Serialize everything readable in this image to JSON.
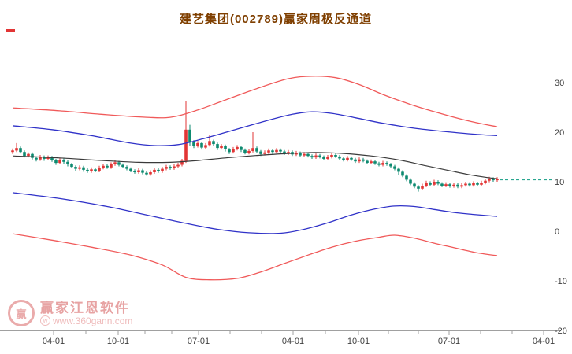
{
  "security": {
    "name": "建艺集团",
    "code": "002789",
    "indicator": "赢家周极反通道"
  },
  "watermark": {
    "brand": "赢家江恩软件",
    "url": "www.360gann.com",
    "url_icon": "w",
    "logo_char": "赢",
    "color": "#e8a3a3"
  },
  "colors": {
    "title": "#7f3f00",
    "up": "#e23535",
    "down": "#0e8a70",
    "band_red": "#f05a5a",
    "band_blue": "#3032c8",
    "band_center": "#3a3a3a",
    "price_line": "#2aa690",
    "axis": "#a0a0a0",
    "tick_label": "#404040",
    "marker": "#e23535"
  },
  "chart_data": {
    "type": "candlestick",
    "title": "建艺集团(002789)赢家周极反通道",
    "ylim": [
      -20,
      30
    ],
    "grid": false,
    "y_ticks": [
      30,
      20,
      10,
      0,
      -10,
      -20
    ],
    "x_ticks": [
      {
        "label": "04-01",
        "x": 68
      },
      {
        "label": "10-01",
        "x": 150
      },
      {
        "label": "07-01",
        "x": 252
      },
      {
        "label": "04-01",
        "x": 372
      },
      {
        "label": "10-01",
        "x": 455
      },
      {
        "label": "07-01",
        "x": 570
      },
      {
        "label": "04-01",
        "x": 690
      }
    ],
    "minor_x": [
      109,
      184,
      218,
      292,
      332,
      413,
      493,
      531,
      610,
      650
    ],
    "price_line": 10.4,
    "candles": [
      [
        16.0,
        16.7,
        15.6,
        16.3
      ],
      [
        16.3,
        17.8,
        16.0,
        16.8
      ],
      [
        16.8,
        17.1,
        15.7,
        16.0
      ],
      [
        16.0,
        16.3,
        14.9,
        15.2
      ],
      [
        15.2,
        15.9,
        14.9,
        15.6
      ],
      [
        15.6,
        15.9,
        14.5,
        14.8
      ],
      [
        14.8,
        15.1,
        14.1,
        14.5
      ],
      [
        14.5,
        15.4,
        14.2,
        15.0
      ],
      [
        15.0,
        15.3,
        14.2,
        14.6
      ],
      [
        14.6,
        15.3,
        14.3,
        14.9
      ],
      [
        14.9,
        15.2,
        14.0,
        14.3
      ],
      [
        14.3,
        14.6,
        13.4,
        13.8
      ],
      [
        13.8,
        14.8,
        13.5,
        14.4
      ],
      [
        14.4,
        14.7,
        13.6,
        14.0
      ],
      [
        14.0,
        14.3,
        13.1,
        13.5
      ],
      [
        13.5,
        13.8,
        12.7,
        13.0
      ],
      [
        13.0,
        13.3,
        12.2,
        12.6
      ],
      [
        12.6,
        13.3,
        12.3,
        12.9
      ],
      [
        12.9,
        13.2,
        12.0,
        12.4
      ],
      [
        12.4,
        12.7,
        11.8,
        12.1
      ],
      [
        12.1,
        12.9,
        11.8,
        12.5
      ],
      [
        12.5,
        12.8,
        11.9,
        12.2
      ],
      [
        12.2,
        13.2,
        11.9,
        12.8
      ],
      [
        12.8,
        13.6,
        12.5,
        13.2
      ],
      [
        13.2,
        13.5,
        12.6,
        12.9
      ],
      [
        12.9,
        13.9,
        12.6,
        13.5
      ],
      [
        13.5,
        14.3,
        13.2,
        13.9
      ],
      [
        13.9,
        14.2,
        13.1,
        13.4
      ],
      [
        13.4,
        13.7,
        12.7,
        13.0
      ],
      [
        13.0,
        13.3,
        12.3,
        12.6
      ],
      [
        12.6,
        12.9,
        11.9,
        12.2
      ],
      [
        12.2,
        12.5,
        11.6,
        11.9
      ],
      [
        11.9,
        12.7,
        11.6,
        12.3
      ],
      [
        12.3,
        12.6,
        11.5,
        11.8
      ],
      [
        11.8,
        12.1,
        11.2,
        11.5
      ],
      [
        11.5,
        12.3,
        11.2,
        11.9
      ],
      [
        11.9,
        12.8,
        11.6,
        12.4
      ],
      [
        12.4,
        12.7,
        11.8,
        12.1
      ],
      [
        12.1,
        13.0,
        11.8,
        12.6
      ],
      [
        12.6,
        13.4,
        12.3,
        13.0
      ],
      [
        13.0,
        13.3,
        12.4,
        12.7
      ],
      [
        12.7,
        13.5,
        12.4,
        13.1
      ],
      [
        13.1,
        13.8,
        12.8,
        13.4
      ],
      [
        13.4,
        14.6,
        13.1,
        14.2
      ],
      [
        14.2,
        26.2,
        13.8,
        20.5
      ],
      [
        20.5,
        21.5,
        17.3,
        18.0
      ],
      [
        18.0,
        18.4,
        16.8,
        17.2
      ],
      [
        17.2,
        18.2,
        16.9,
        17.8
      ],
      [
        17.8,
        18.1,
        16.5,
        16.9
      ],
      [
        16.9,
        17.8,
        16.6,
        17.4
      ],
      [
        17.4,
        19.5,
        17.1,
        18.2
      ],
      [
        18.2,
        18.5,
        17.2,
        17.6
      ],
      [
        17.6,
        17.9,
        16.4,
        16.8
      ],
      [
        16.8,
        17.6,
        16.5,
        17.2
      ],
      [
        17.2,
        17.5,
        16.1,
        16.5
      ],
      [
        16.5,
        16.8,
        15.6,
        16.0
      ],
      [
        16.0,
        17.0,
        15.7,
        16.6
      ],
      [
        16.6,
        17.4,
        16.3,
        17.0
      ],
      [
        17.0,
        17.3,
        16.0,
        16.4
      ],
      [
        16.4,
        16.7,
        15.5,
        15.8
      ],
      [
        15.8,
        16.6,
        15.5,
        16.2
      ],
      [
        16.2,
        20.0,
        15.9,
        16.8
      ],
      [
        16.8,
        17.1,
        15.8,
        16.1
      ],
      [
        16.1,
        16.4,
        15.2,
        15.6
      ],
      [
        15.6,
        16.3,
        15.3,
        15.9
      ],
      [
        15.9,
        16.7,
        15.6,
        16.3
      ],
      [
        16.3,
        16.6,
        15.6,
        16.0
      ],
      [
        16.0,
        16.8,
        15.7,
        16.4
      ],
      [
        16.4,
        16.7,
        15.8,
        16.1
      ],
      [
        16.1,
        16.4,
        15.4,
        15.7
      ],
      [
        15.7,
        16.4,
        15.4,
        16.0
      ],
      [
        16.0,
        16.3,
        15.2,
        15.5
      ],
      [
        15.5,
        16.2,
        15.2,
        15.8
      ],
      [
        15.8,
        16.1,
        15.0,
        15.3
      ],
      [
        15.3,
        16.0,
        15.0,
        15.6
      ],
      [
        15.6,
        15.9,
        14.9,
        15.2
      ],
      [
        15.2,
        15.5,
        14.6,
        14.9
      ],
      [
        14.9,
        15.7,
        14.6,
        15.3
      ],
      [
        15.3,
        15.6,
        14.7,
        15.0
      ],
      [
        15.0,
        15.3,
        14.3,
        14.6
      ],
      [
        14.6,
        15.4,
        14.3,
        15.0
      ],
      [
        15.0,
        15.8,
        14.7,
        15.4
      ],
      [
        15.4,
        15.7,
        14.8,
        15.1
      ],
      [
        15.1,
        15.4,
        14.4,
        14.7
      ],
      [
        14.7,
        15.0,
        14.1,
        14.4
      ],
      [
        14.4,
        15.2,
        14.1,
        14.8
      ],
      [
        14.8,
        15.1,
        14.2,
        14.5
      ],
      [
        14.5,
        14.8,
        13.8,
        14.1
      ],
      [
        14.1,
        14.9,
        13.8,
        14.5
      ],
      [
        14.5,
        14.8,
        13.9,
        14.2
      ],
      [
        14.2,
        14.5,
        13.5,
        13.8
      ],
      [
        13.8,
        14.5,
        13.5,
        14.1
      ],
      [
        14.1,
        14.4,
        13.4,
        13.7
      ],
      [
        13.7,
        14.0,
        13.1,
        13.4
      ],
      [
        13.4,
        14.2,
        13.1,
        13.8
      ],
      [
        13.8,
        14.1,
        13.2,
        13.5
      ],
      [
        13.5,
        13.8,
        12.8,
        13.1
      ],
      [
        13.1,
        13.4,
        12.3,
        12.6
      ],
      [
        12.6,
        12.9,
        11.3,
        12.0
      ],
      [
        12.0,
        12.3,
        10.9,
        11.2
      ],
      [
        11.2,
        11.5,
        10.1,
        10.4
      ],
      [
        10.4,
        10.7,
        9.3,
        9.6
      ],
      [
        9.6,
        9.9,
        8.7,
        9.0
      ],
      [
        9.0,
        9.3,
        8.0,
        8.6
      ],
      [
        8.6,
        9.6,
        8.3,
        9.2
      ],
      [
        9.2,
        10.2,
        8.9,
        9.8
      ],
      [
        9.8,
        10.1,
        9.1,
        9.4
      ],
      [
        9.4,
        10.4,
        9.1,
        10.0
      ],
      [
        10.0,
        10.3,
        9.3,
        9.6
      ],
      [
        9.6,
        9.9,
        8.9,
        9.2
      ],
      [
        9.2,
        9.9,
        8.9,
        9.5
      ],
      [
        9.5,
        9.8,
        8.8,
        9.1
      ],
      [
        9.1,
        9.8,
        8.8,
        9.4
      ],
      [
        9.4,
        9.7,
        8.7,
        9.0
      ],
      [
        9.0,
        9.7,
        8.7,
        9.3
      ],
      [
        9.3,
        10.0,
        9.0,
        9.6
      ],
      [
        9.6,
        9.9,
        9.0,
        9.3
      ],
      [
        9.3,
        10.1,
        9.0,
        9.7
      ],
      [
        9.7,
        10.0,
        9.1,
        9.4
      ],
      [
        9.4,
        10.2,
        9.1,
        9.8
      ],
      [
        9.8,
        10.6,
        9.5,
        10.2
      ],
      [
        10.2,
        11.0,
        9.9,
        10.6
      ],
      [
        10.6,
        10.9,
        10.0,
        10.3
      ],
      [
        10.3,
        10.9,
        10.0,
        10.5
      ]
    ],
    "bands": {
      "upper_red": [
        [
          0,
          24.9
        ],
        [
          12,
          24.3
        ],
        [
          24,
          23.5
        ],
        [
          34,
          23.0
        ],
        [
          40,
          23.0
        ],
        [
          46,
          24.2
        ],
        [
          54,
          26.5
        ],
        [
          62,
          28.8
        ],
        [
          70,
          30.8
        ],
        [
          76,
          31.3
        ],
        [
          82,
          31.0
        ],
        [
          88,
          29.6
        ],
        [
          94,
          27.6
        ],
        [
          101,
          25.6
        ],
        [
          108,
          23.9
        ],
        [
          114,
          22.6
        ],
        [
          119,
          21.7
        ],
        [
          123,
          21.1
        ]
      ],
      "upper_blue": [
        [
          0,
          21.3
        ],
        [
          10,
          20.5
        ],
        [
          20,
          19.3
        ],
        [
          30,
          17.8
        ],
        [
          36,
          17.3
        ],
        [
          42,
          17.5
        ],
        [
          48,
          18.6
        ],
        [
          56,
          20.4
        ],
        [
          64,
          22.2
        ],
        [
          71,
          23.6
        ],
        [
          76,
          24.1
        ],
        [
          81,
          23.8
        ],
        [
          87,
          22.9
        ],
        [
          94,
          21.8
        ],
        [
          102,
          20.8
        ],
        [
          110,
          20.1
        ],
        [
          117,
          19.6
        ],
        [
          123,
          19.3
        ]
      ],
      "center": [
        [
          0,
          15.2
        ],
        [
          12,
          14.8
        ],
        [
          22,
          14.3
        ],
        [
          32,
          13.9
        ],
        [
          40,
          13.9
        ],
        [
          46,
          14.2
        ],
        [
          54,
          14.8
        ],
        [
          62,
          15.3
        ],
        [
          70,
          15.7
        ],
        [
          77,
          15.9
        ],
        [
          84,
          15.7
        ],
        [
          91,
          15.2
        ],
        [
          98,
          14.4
        ],
        [
          105,
          13.2
        ],
        [
          111,
          12.2
        ],
        [
          116,
          11.4
        ],
        [
          120,
          10.9
        ],
        [
          123,
          10.6
        ]
      ],
      "lower_blue": [
        [
          0,
          7.8
        ],
        [
          12,
          6.6
        ],
        [
          24,
          5.0
        ],
        [
          34,
          3.3
        ],
        [
          44,
          1.6
        ],
        [
          52,
          0.4
        ],
        [
          60,
          -0.3
        ],
        [
          68,
          -0.4
        ],
        [
          74,
          0.4
        ],
        [
          80,
          1.7
        ],
        [
          86,
          3.3
        ],
        [
          92,
          4.5
        ],
        [
          97,
          5.1
        ],
        [
          102,
          5.0
        ],
        [
          107,
          4.4
        ],
        [
          112,
          3.8
        ],
        [
          117,
          3.4
        ],
        [
          123,
          3.0
        ]
      ],
      "lower_red": [
        [
          0,
          -0.5
        ],
        [
          10,
          -1.8
        ],
        [
          20,
          -3.2
        ],
        [
          30,
          -4.8
        ],
        [
          38,
          -6.8
        ],
        [
          44,
          -9.3
        ],
        [
          50,
          -9.8
        ],
        [
          57,
          -9.5
        ],
        [
          63,
          -8.2
        ],
        [
          69,
          -6.5
        ],
        [
          75,
          -4.8
        ],
        [
          81,
          -3.2
        ],
        [
          87,
          -2.0
        ],
        [
          93,
          -1.2
        ],
        [
          97,
          -0.8
        ],
        [
          102,
          -1.4
        ],
        [
          107,
          -2.4
        ],
        [
          112,
          -3.3
        ],
        [
          117,
          -4.2
        ],
        [
          120,
          -4.6
        ],
        [
          123,
          -4.9
        ]
      ]
    }
  }
}
